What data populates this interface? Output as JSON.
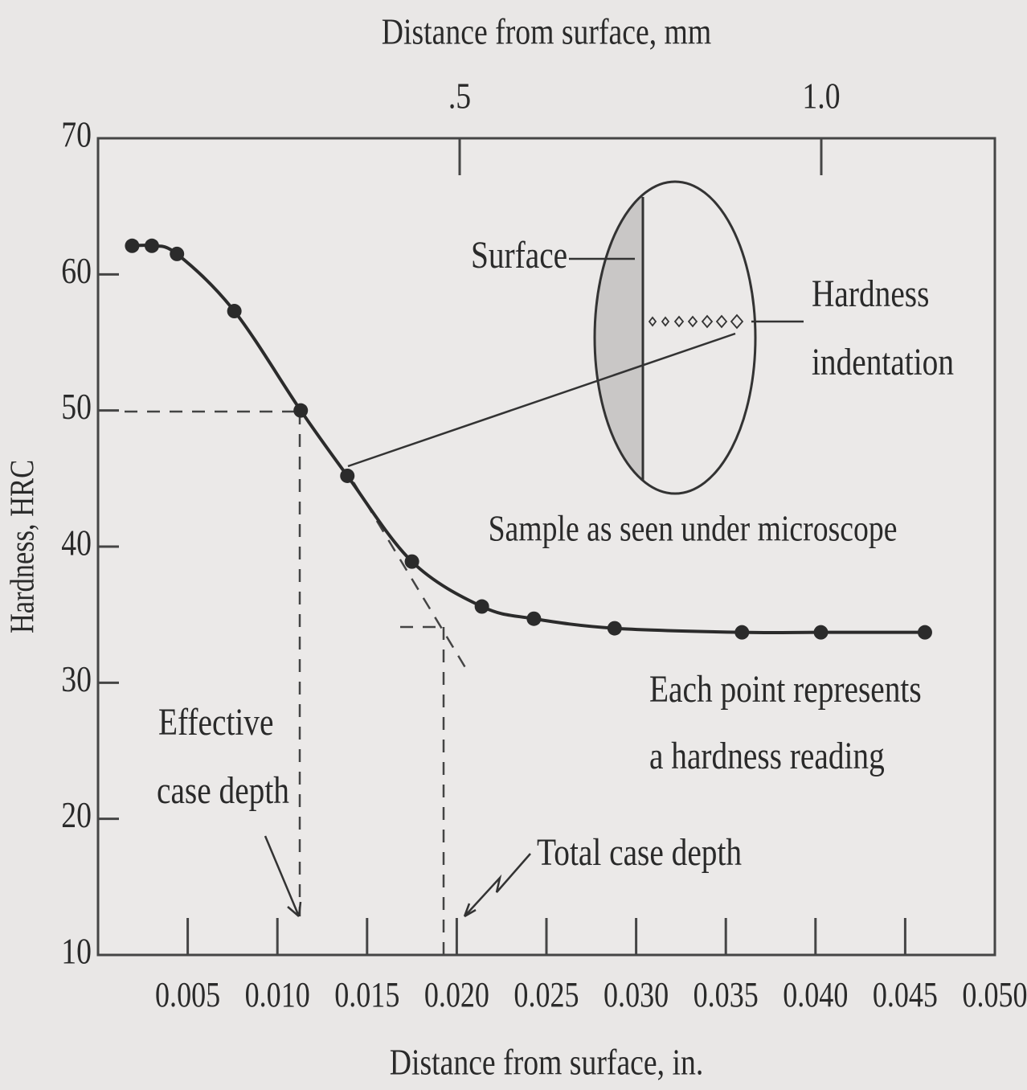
{
  "chart_data": {
    "type": "line",
    "x_label": "Distance from surface, in.",
    "x2_label": "Distance from surface, mm",
    "y_label": "Hardness, HRC",
    "x": [
      0.0019,
      0.003,
      0.0044,
      0.0076,
      0.0113,
      0.0139,
      0.0175,
      0.0214,
      0.0243,
      0.0288,
      0.0359,
      0.0403,
      0.0461
    ],
    "values": [
      62.1,
      62.1,
      61.5,
      57.3,
      50,
      45.2,
      38.9,
      35.6,
      34.7,
      34,
      33.7,
      33.7,
      33.7
    ],
    "color": "#2b2b2b",
    "markers": true,
    "xlim": [
      0,
      0.05
    ],
    "xticks": [
      0.005,
      {
        "value": 0.01,
        "label": "0.010"
      },
      0.015,
      {
        "value": 0.02,
        "label": "0.020"
      },
      0.025,
      {
        "value": 0.03,
        "label": "0.030"
      },
      0.035,
      {
        "value": 0.04,
        "label": "0.040"
      },
      0.045,
      {
        "value": 0.05,
        "label": "0.050"
      }
    ],
    "x2lim": [
      0,
      1.24
    ],
    "x2ticks": [
      {
        "value": 0.5,
        "label": ".5"
      },
      {
        "value": 1,
        "label": "1.0"
      }
    ],
    "ylim": [
      10,
      70
    ],
    "yticks": [
      10,
      20,
      30,
      40,
      50,
      60,
      70
    ],
    "grid": false,
    "annotations": {
      "surface": "Surface",
      "indentation": [
        "Hardness",
        "indentation"
      ],
      "microscope": "Sample as seen under microscope",
      "each_point": [
        "Each point represents",
        "a hardness reading"
      ],
      "effective": [
        "Effective",
        "case depth"
      ],
      "total": "Total case depth"
    }
  }
}
